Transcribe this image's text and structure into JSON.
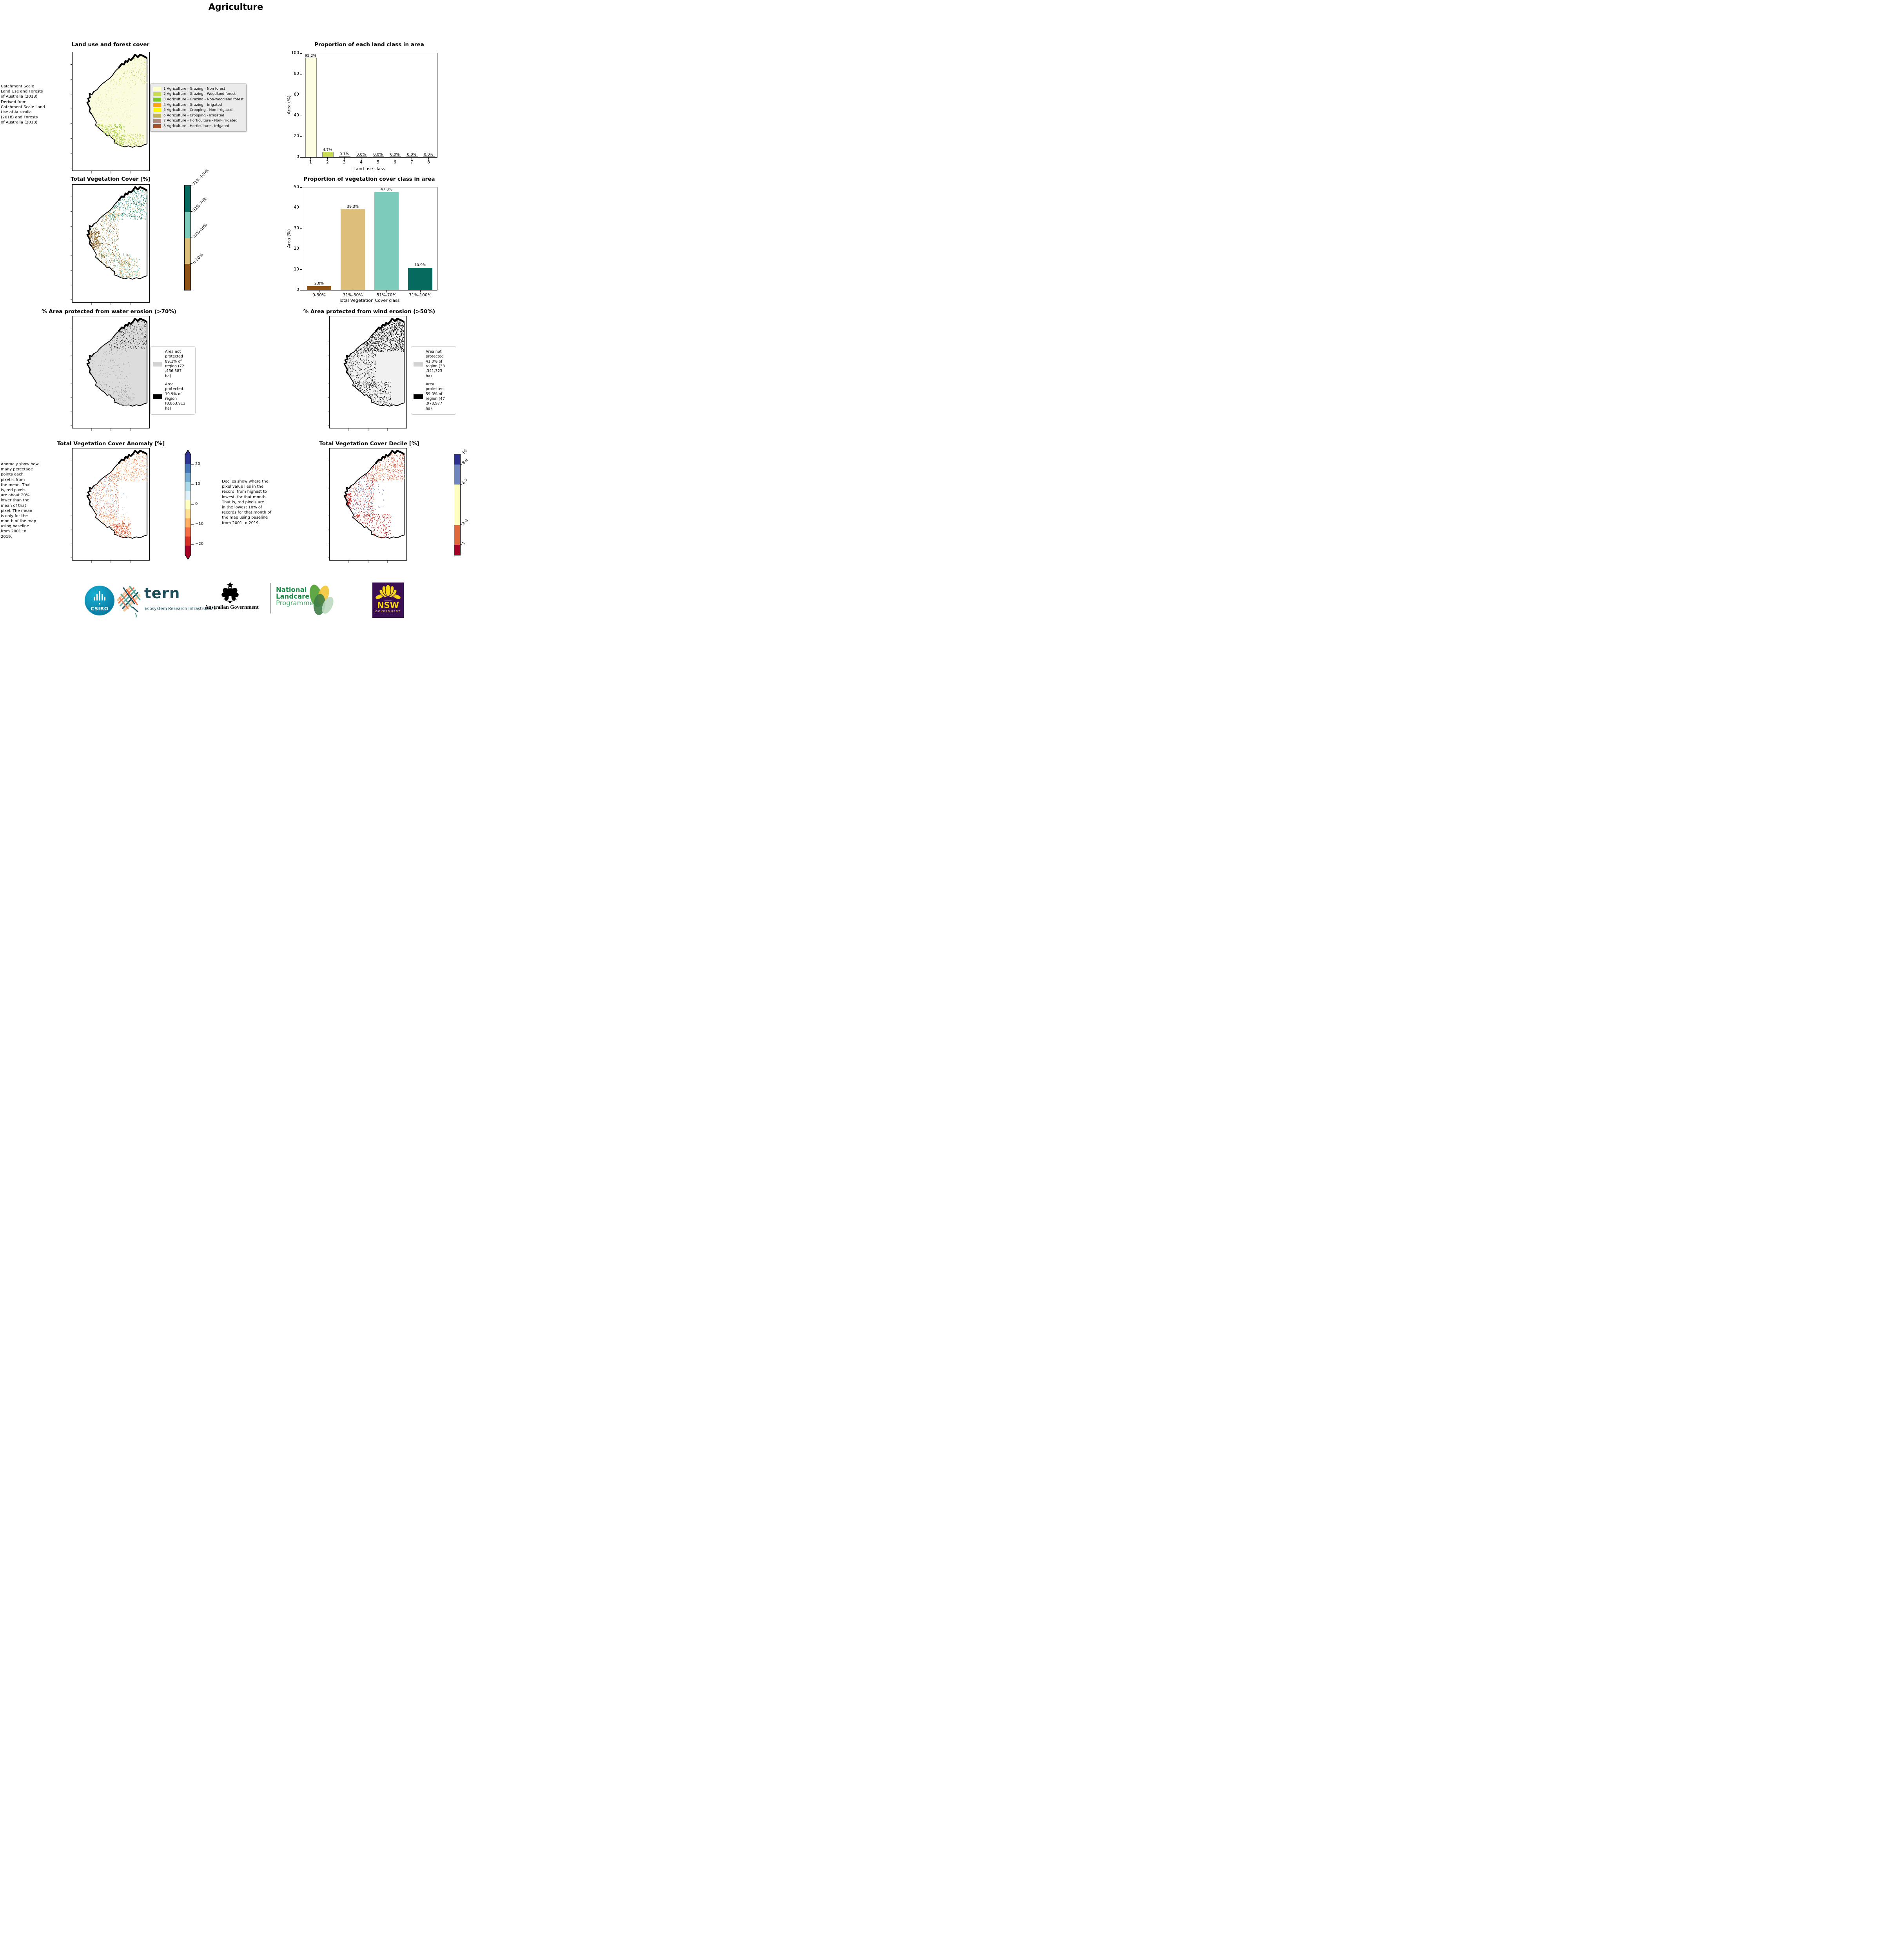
{
  "header": {
    "title": "Agriculture"
  },
  "panels": {
    "land_use": {
      "title": "Land use and forest cover",
      "side_note": " Catchment Scale\nLand Use and Forests\nof Australia (2018)\nDerived from\nCatchment Scale Land\nUse of Australia\n(2018) and Forests\nof Australia (2018)",
      "legend": [
        {
          "label": "1 Agriculture - Grazing - Non forest",
          "color": "#FFFFCC"
        },
        {
          "label": "2 Agriculture - Grazing - Woodland forest",
          "color": "#C9DB53"
        },
        {
          "label": "3 Agriculture - Grazing - Non-woodland forest",
          "color": "#7CC828"
        },
        {
          "label": "4 Agriculture - Grazing - Irrigated",
          "color": "#FFA510"
        },
        {
          "label": "5 Agriculture - Cropping - Non-irrigated",
          "color": "#FFFF00"
        },
        {
          "label": "6 Agriculture - Cropping - Irrigated",
          "color": "#C3B35A"
        },
        {
          "label": "7 Agriculture - Horticulture - Non-irrigated",
          "color": "#AD897C"
        },
        {
          "label": "8 Agriculture - Horticulture - Irrigated",
          "color": "#A5522B"
        }
      ]
    },
    "veg_cover": {
      "title": "Total Vegetation Cover [%]",
      "colorbar": [
        {
          "label": "71%-100%",
          "color": "#076A5E"
        },
        {
          "label": "51%-70%",
          "color": "#7DCBBB"
        },
        {
          "label": "31%-50%",
          "color": "#DEBE7B"
        },
        {
          "label": "0-30%",
          "color": "#8F5315"
        }
      ]
    },
    "water_erosion": {
      "title": "% Area protected from water erosion (>70%)",
      "legend": [
        {
          "label": "Area not\nprotected\n89.1% of\nregion (72\n,456,387\nha)",
          "color": "#D3D3D3"
        },
        {
          "label": "Area\nprotected\n10.9% of\nregion\n(8,863,912\nha)",
          "color": "#000000"
        }
      ]
    },
    "wind_erosion": {
      "title": "% Area protected from wind erosion (>50%)",
      "legend": [
        {
          "label": "Area not\nprotected\n41.0% of\nregion (33\n,341,323\nha)",
          "color": "#D3D3D3"
        },
        {
          "label": "Area\nprotected\n59.0% of\nregion (47\n,978,977\nha)",
          "color": "#000000"
        }
      ]
    },
    "anomaly": {
      "title": "Total Vegetation Cover Anomaly [%]",
      "note": "Anomaly show how\nmany percetage\npoints each\npixel is from\nthe mean. That\nis, red pixels\nare about 20%\nlower than the\nmean of that\npixel. The mean\nis only for the\nmonth of the map\nusing baseline\nfrom 2001 to\n2019.",
      "colorbar_ticks": [
        "20",
        "10",
        "0",
        "−10",
        "−20"
      ],
      "colorbar_colors": [
        "#313695",
        "#4575B4",
        "#74ADD1",
        "#ABD9E9",
        "#E0F3F8",
        "#FFFFBF",
        "#FEE090",
        "#FDAE61",
        "#F46D43",
        "#D73027",
        "#A50026"
      ]
    },
    "decile": {
      "title": "Total Vegetation Cover Decile [%]",
      "note": "Deciles show where the\npixel value lies in the\nrecord, from highest to\nlowest, for that month.\nThat is, red pixels are\nin the lowest 10% of\nrecords for that month of\nthe map using baseline\nfrom 2001 to 2019.",
      "colorbar": [
        {
          "label": "10",
          "color": "#2D2F8F",
          "span": 1
        },
        {
          "label": "8-9",
          "color": "#7084BE",
          "span": 2
        },
        {
          "label": "4-7",
          "color": "#FFFFBF",
          "span": 4
        },
        {
          "label": "2-3",
          "color": "#E0683D",
          "span": 2
        },
        {
          "label": "1",
          "color": "#A50026",
          "span": 1
        }
      ]
    }
  },
  "chart_data": [
    {
      "type": "bar",
      "title": "Proportion of each land class in area",
      "xlabel": "Land use class",
      "ylabel": "Area (%)",
      "ylim": [
        0,
        100
      ],
      "yticks": [
        0,
        20,
        40,
        60,
        80,
        100
      ],
      "categories": [
        "1",
        "2",
        "3",
        "4",
        "5",
        "6",
        "7",
        "8"
      ],
      "values": [
        95.2,
        4.7,
        0.1,
        0.0,
        0.0,
        0.0,
        0.0,
        0.0
      ],
      "bar_labels": [
        "95.2%",
        "4.7%",
        "0.1%",
        "0.0%",
        "0.0%",
        "0.0%",
        "0.0%",
        "0.0%"
      ],
      "bar_colors": [
        "#FDFDE1",
        "#C9DB53",
        "#7CC828",
        "#FFA510",
        "#FFFF00",
        "#C3B35A",
        "#AD897C",
        "#A5522B"
      ],
      "bar_edge": "#8a8a8a",
      "bar_width": 0.62,
      "grid": false,
      "legend": "none"
    },
    {
      "type": "bar",
      "title": "Proportion of vegetation cover class in area",
      "xlabel": "Total Vegetation Cover class",
      "ylabel": "Area (%)",
      "ylim": [
        0,
        50
      ],
      "yticks": [
        0,
        10,
        20,
        30,
        40,
        50
      ],
      "categories": [
        "0-30%",
        "31%-50%",
        "51%-70%",
        "71%-100%"
      ],
      "values": [
        2.0,
        39.3,
        47.8,
        10.9
      ],
      "bar_labels": [
        "2.0%",
        "39.3%",
        "47.8%",
        "10.9%"
      ],
      "bar_colors": [
        "#8F5315",
        "#DEBE7B",
        "#7DCBBB",
        "#076A5E"
      ],
      "bar_edge": null,
      "bar_width": 0.72,
      "grid": false,
      "legend": "none"
    }
  ],
  "footer": {
    "csiro_label": "CSIRO",
    "tern_label": "tern",
    "tern_sub": "Ecosystem Research Infrastructure",
    "gov_label": "Australian Government",
    "nlp_line1": "National",
    "nlp_line2": "Landcare",
    "nlp_line3": "Programme",
    "nsw_label": "NSW",
    "nsw_sub": "GOVERNMENT"
  }
}
